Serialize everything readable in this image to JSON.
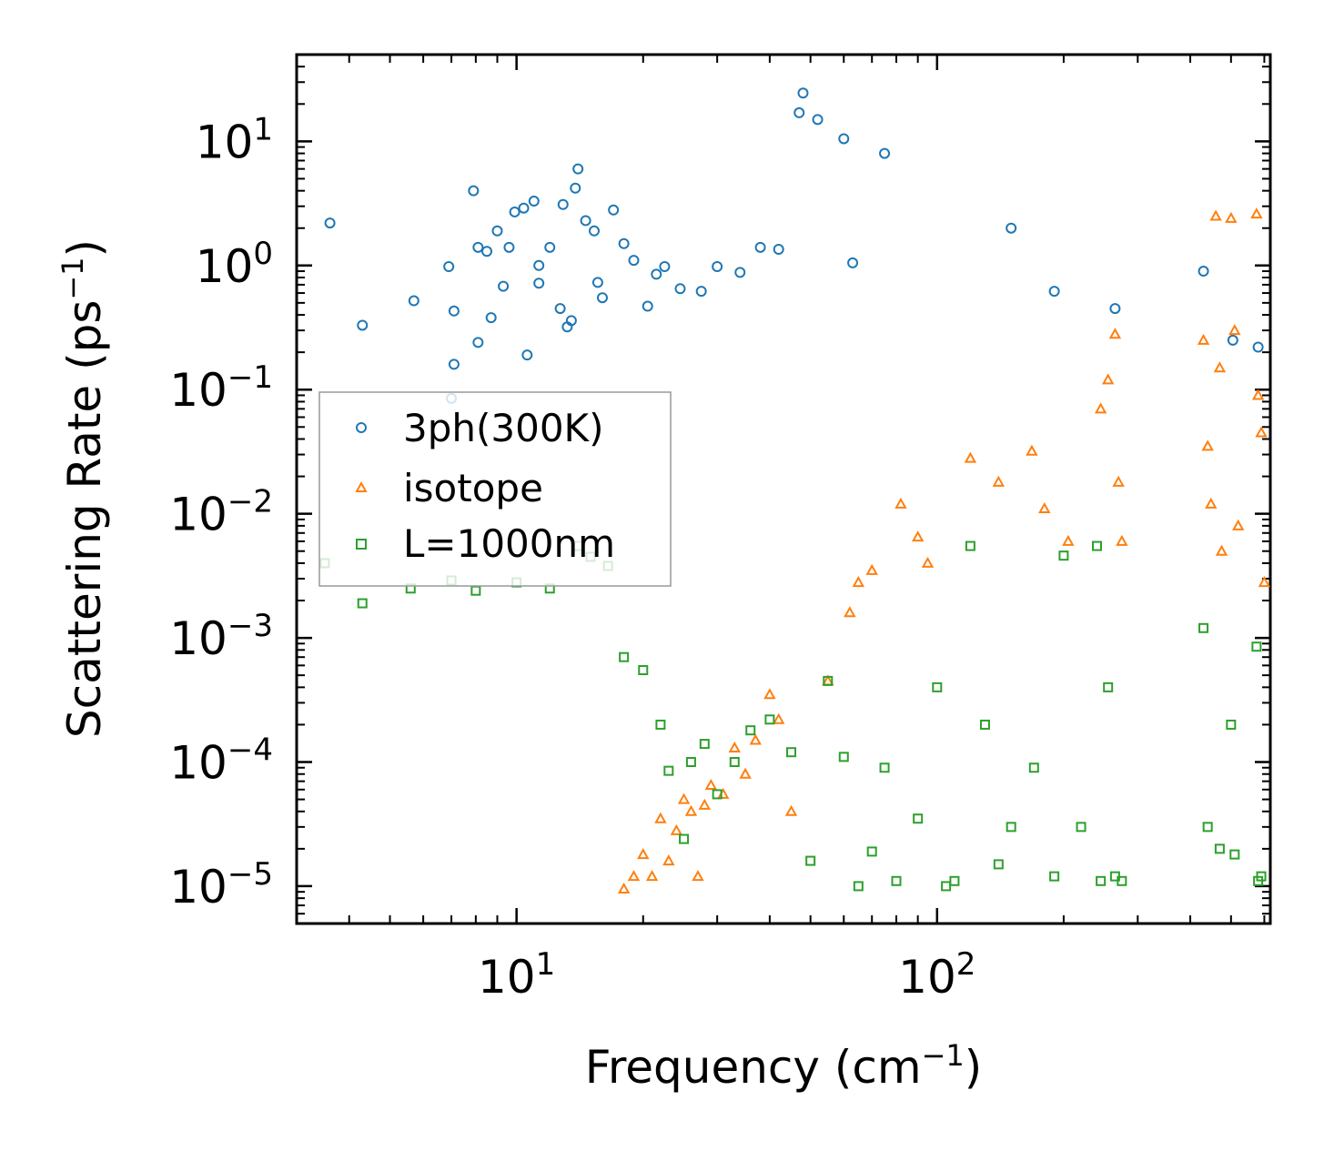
{
  "chart_data": {
    "type": "scatter",
    "title": "",
    "xlabel": "Frequency (cm",
    "xlabel_sup": "−1",
    "xlabel_end": ")",
    "ylabel": "Scattering Rate (ps",
    "ylabel_sup": "−1",
    "ylabel_end": ")",
    "x_scale": "log",
    "y_scale": "log",
    "xlim": [
      3,
      620
    ],
    "ylim": [
      5e-06,
      50
    ],
    "x_ticks": [
      {
        "value": 10,
        "base": "10",
        "exp": "1"
      },
      {
        "value": 100,
        "base": "10",
        "exp": "2"
      }
    ],
    "y_ticks": [
      {
        "value": 10,
        "base": "10",
        "exp": "1"
      },
      {
        "value": 1,
        "base": "10",
        "exp": "0"
      },
      {
        "value": 0.1,
        "base": "10",
        "exp": "−1"
      },
      {
        "value": 0.01,
        "base": "10",
        "exp": "−2"
      },
      {
        "value": 0.001,
        "base": "10",
        "exp": "−3"
      },
      {
        "value": 0.0001,
        "base": "10",
        "exp": "−4"
      },
      {
        "value": 1e-05,
        "base": "10",
        "exp": "−5"
      }
    ],
    "legend": {
      "position": "center-left"
    },
    "series": [
      {
        "name": "3ph(300K)",
        "color": "#1f77b4",
        "marker": "circle",
        "points": [
          [
            3.6,
            2.2
          ],
          [
            4.3,
            0.33
          ],
          [
            5.7,
            0.52
          ],
          [
            6.9,
            0.98
          ],
          [
            7.1,
            0.43
          ],
          [
            7.1,
            0.16
          ],
          [
            7.0,
            0.085
          ],
          [
            7.9,
            4.0
          ],
          [
            8.1,
            1.4
          ],
          [
            8.1,
            0.24
          ],
          [
            8.5,
            1.3
          ],
          [
            8.7,
            0.38
          ],
          [
            9.0,
            1.9
          ],
          [
            9.3,
            0.68
          ],
          [
            9.6,
            1.4
          ],
          [
            9.9,
            2.7
          ],
          [
            10.4,
            2.9
          ],
          [
            10.6,
            0.19
          ],
          [
            11.0,
            3.3
          ],
          [
            11.3,
            1.0
          ],
          [
            11.3,
            0.72
          ],
          [
            12.0,
            1.4
          ],
          [
            12.7,
            0.45
          ],
          [
            12.9,
            3.1
          ],
          [
            13.2,
            0.32
          ],
          [
            13.5,
            0.36
          ],
          [
            13.8,
            4.2
          ],
          [
            14.0,
            6.0
          ],
          [
            14.6,
            2.3
          ],
          [
            15.3,
            1.9
          ],
          [
            15.6,
            0.73
          ],
          [
            16.0,
            0.55
          ],
          [
            17.0,
            2.8
          ],
          [
            18.0,
            1.5
          ],
          [
            19.0,
            1.1
          ],
          [
            20.5,
            0.47
          ],
          [
            21.5,
            0.85
          ],
          [
            22.5,
            0.98
          ],
          [
            24.5,
            0.65
          ],
          [
            27.5,
            0.62
          ],
          [
            30.0,
            0.98
          ],
          [
            34.0,
            0.88
          ],
          [
            38.0,
            1.4
          ],
          [
            42.0,
            1.35
          ],
          [
            48.0,
            24.5
          ],
          [
            47.0,
            17.0
          ],
          [
            52.0,
            15.0
          ],
          [
            60.0,
            10.5
          ],
          [
            63.0,
            1.05
          ],
          [
            75.0,
            8.0
          ],
          [
            150.0,
            2.0
          ],
          [
            190.0,
            0.62
          ],
          [
            265.0,
            0.45
          ],
          [
            430.0,
            0.9
          ],
          [
            505.0,
            0.25
          ],
          [
            580.0,
            0.22
          ]
        ]
      },
      {
        "name": "isotope",
        "color": "#ff7f0e",
        "marker": "triangle",
        "points": [
          [
            18.0,
            9.5e-06
          ],
          [
            19.0,
            1.2e-05
          ],
          [
            20.0,
            1.8e-05
          ],
          [
            21.0,
            1.2e-05
          ],
          [
            22.0,
            3.5e-05
          ],
          [
            23.0,
            1.6e-05
          ],
          [
            24.0,
            2.8e-05
          ],
          [
            25.0,
            5e-05
          ],
          [
            26.0,
            4e-05
          ],
          [
            27.0,
            1.2e-05
          ],
          [
            28.0,
            4.5e-05
          ],
          [
            29.0,
            6.5e-05
          ],
          [
            31.0,
            5.5e-05
          ],
          [
            33.0,
            0.00013
          ],
          [
            35.0,
            8e-05
          ],
          [
            37.0,
            0.00015
          ],
          [
            40.0,
            0.00035
          ],
          [
            42.0,
            0.00022
          ],
          [
            45.0,
            4e-05
          ],
          [
            55.0,
            0.00045
          ],
          [
            62.0,
            0.0016
          ],
          [
            65.0,
            0.0028
          ],
          [
            70.0,
            0.0035
          ],
          [
            82.0,
            0.012
          ],
          [
            90.0,
            0.0065
          ],
          [
            95.0,
            0.004
          ],
          [
            120.0,
            0.028
          ],
          [
            140.0,
            0.018
          ],
          [
            168.0,
            0.032
          ],
          [
            180.0,
            0.011
          ],
          [
            205.0,
            0.006
          ],
          [
            245.0,
            0.07
          ],
          [
            255.0,
            0.12
          ],
          [
            265.0,
            0.28
          ],
          [
            270.0,
            0.018
          ],
          [
            275.0,
            0.006
          ],
          [
            430.0,
            0.25
          ],
          [
            440.0,
            0.035
          ],
          [
            448.0,
            0.012
          ],
          [
            460.0,
            2.5
          ],
          [
            470.0,
            0.15
          ],
          [
            475.0,
            0.005
          ],
          [
            500.0,
            2.4
          ],
          [
            510.0,
            0.3
          ],
          [
            520.0,
            0.008
          ],
          [
            575.0,
            2.6
          ],
          [
            580.0,
            0.09
          ],
          [
            590.0,
            0.045
          ],
          [
            600.0,
            0.0028
          ]
        ]
      },
      {
        "name": "L=1000nm",
        "color": "#2ca02c",
        "marker": "square",
        "points": [
          [
            3.5,
            0.004
          ],
          [
            4.3,
            0.0019
          ],
          [
            5.6,
            0.0025
          ],
          [
            7.0,
            0.0029
          ],
          [
            8.0,
            0.0024
          ],
          [
            10.0,
            0.0028
          ],
          [
            12.0,
            0.0025
          ],
          [
            14.0,
            0.0055
          ],
          [
            15.0,
            0.0045
          ],
          [
            16.5,
            0.0038
          ],
          [
            18.0,
            0.0007
          ],
          [
            20.0,
            0.00055
          ],
          [
            22.0,
            0.0002
          ],
          [
            23.0,
            8.5e-05
          ],
          [
            25.0,
            2.4e-05
          ],
          [
            26.0,
            0.0001
          ],
          [
            28.0,
            0.00014
          ],
          [
            30.0,
            5.5e-05
          ],
          [
            33.0,
            0.0001
          ],
          [
            36.0,
            0.00018
          ],
          [
            40.0,
            0.00022
          ],
          [
            45.0,
            0.00012
          ],
          [
            50.0,
            1.6e-05
          ],
          [
            55.0,
            0.00045
          ],
          [
            60.0,
            0.00011
          ],
          [
            65.0,
            1e-05
          ],
          [
            70.0,
            1.9e-05
          ],
          [
            75.0,
            9e-05
          ],
          [
            80.0,
            1.1e-05
          ],
          [
            90.0,
            3.5e-05
          ],
          [
            100.0,
            0.0004
          ],
          [
            105.0,
            1e-05
          ],
          [
            110.0,
            1.1e-05
          ],
          [
            120.0,
            0.0055
          ],
          [
            130.0,
            0.0002
          ],
          [
            140.0,
            1.5e-05
          ],
          [
            150.0,
            3e-05
          ],
          [
            170.0,
            9e-05
          ],
          [
            190.0,
            1.2e-05
          ],
          [
            200.0,
            0.0046
          ],
          [
            220.0,
            3e-05
          ],
          [
            240.0,
            0.0055
          ],
          [
            245.0,
            1.1e-05
          ],
          [
            255.0,
            0.0004
          ],
          [
            265.0,
            1.2e-05
          ],
          [
            275.0,
            1.1e-05
          ],
          [
            430.0,
            0.0012
          ],
          [
            440.0,
            3e-05
          ],
          [
            470.0,
            2e-05
          ],
          [
            500.0,
            0.0002
          ],
          [
            510.0,
            1.8e-05
          ],
          [
            575.0,
            0.00085
          ],
          [
            580.0,
            1.1e-05
          ],
          [
            590.0,
            1.2e-05
          ]
        ]
      }
    ]
  }
}
